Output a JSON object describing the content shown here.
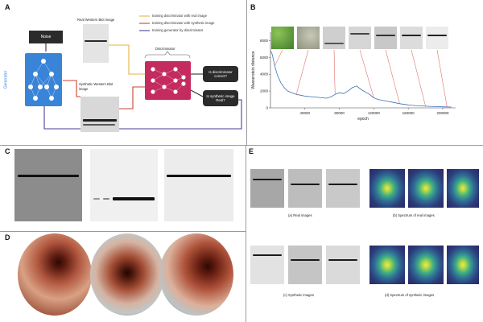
{
  "panels": {
    "a": {
      "letter": "A",
      "noise_label": "Noise",
      "generator_label": "Generator",
      "real_blot_label": "Real Western Blot image",
      "synthetic_blot_label": "Synthetic Western Blot image",
      "discriminator_label": "Discriminator",
      "question1": "Is discriminator correct?",
      "question2": "Is synthetic image Real?",
      "legend": [
        {
          "text": "training discriminator with real image",
          "color": "#e8b33a"
        },
        {
          "text": "training discriminator with synthetic image",
          "color": "#c9402a"
        },
        {
          "text": "training generator by discriminator",
          "color": "#4b3f9c"
        }
      ]
    },
    "b": {
      "letter": "B"
    },
    "c": {
      "letter": "C"
    },
    "d": {
      "letter": "D"
    },
    "e": {
      "letter": "E",
      "captions": [
        "(a) Real images",
        "(b) Spectrum of real images",
        "(c) Synthetic images",
        "(d) Spectrum of synthetic images"
      ]
    }
  },
  "chart_data": {
    "type": "line",
    "xlabel": "epoch",
    "ylabel": "Wasserstein distance",
    "xticks": [
      "40000",
      "80000",
      "120000",
      "160000",
      "200000"
    ],
    "yticks": [
      "0",
      "2000",
      "4000",
      "6000",
      "8000"
    ],
    "xlim": [
      0,
      215000
    ],
    "ylim": [
      0,
      9000
    ],
    "series": [
      {
        "color": "#3b6fb6",
        "x": [
          0,
          2000,
          5000,
          8000,
          12000,
          16000,
          20000,
          25000,
          30000,
          35000,
          40000,
          45000,
          50000,
          55000,
          60000,
          65000,
          70000,
          75000,
          80000,
          85000,
          90000,
          95000,
          100000,
          105000,
          110000,
          115000,
          120000,
          125000,
          130000,
          135000,
          140000,
          145000,
          150000,
          160000,
          170000,
          180000,
          190000,
          200000,
          210000
        ],
        "y": [
          6800,
          6400,
          5000,
          3900,
          3000,
          2400,
          2000,
          1800,
          1600,
          1500,
          1400,
          1350,
          1300,
          1250,
          1200,
          1150,
          1300,
          1600,
          1800,
          1700,
          2000,
          2400,
          2600,
          2200,
          1900,
          1600,
          1200,
          1000,
          900,
          800,
          700,
          600,
          500,
          350,
          250,
          200,
          150,
          120,
          100
        ]
      }
    ],
    "sample_epochs": [
      5000,
      30000,
      75000,
      120000,
      150000,
      180000,
      205000
    ]
  }
}
